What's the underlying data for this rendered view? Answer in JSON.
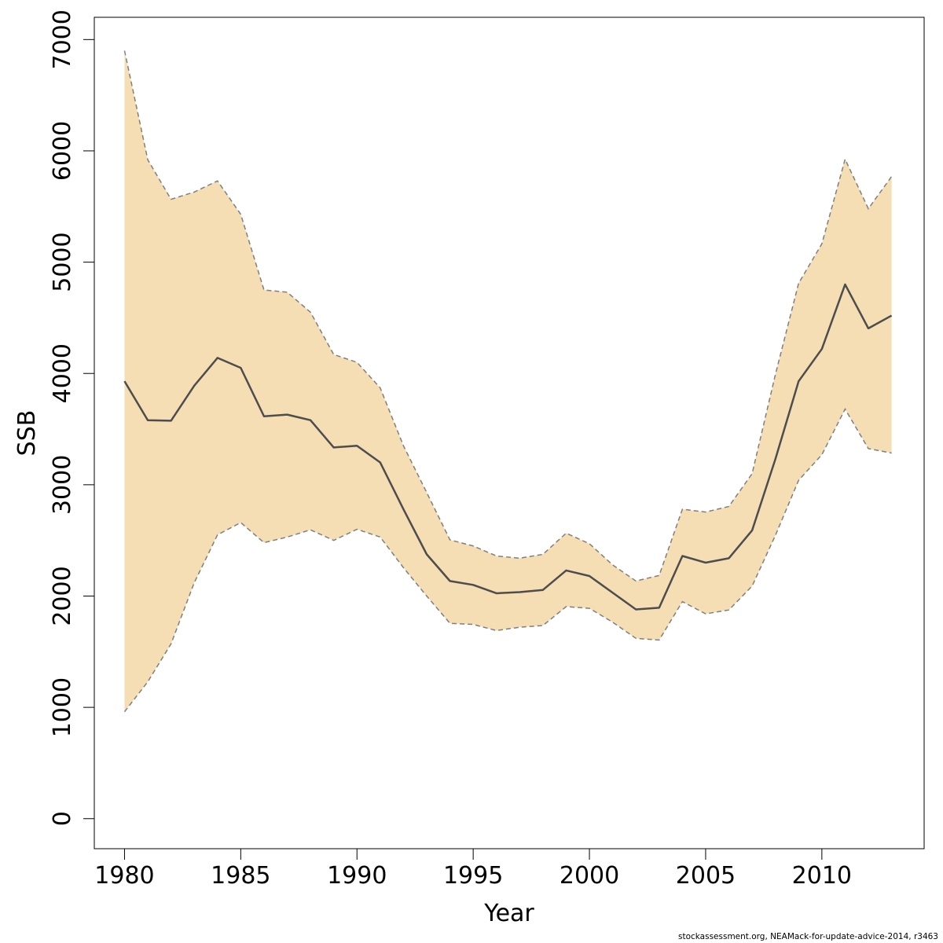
{
  "chart_data": {
    "type": "area",
    "xlabel": "Year",
    "ylabel": "SSB",
    "xlim": [
      1978.7,
      2014.4
    ],
    "ylim": [
      -270,
      7200
    ],
    "xticks": [
      1980,
      1985,
      1990,
      1995,
      2000,
      2005,
      2010
    ],
    "yticks": [
      0,
      1000,
      2000,
      3000,
      4000,
      5000,
      6000,
      7000
    ],
    "grid": false,
    "legend": "none",
    "x": [
      1980,
      1981,
      1982,
      1983,
      1984,
      1985,
      1986,
      1987,
      1988,
      1989,
      1990,
      1991,
      1992,
      1993,
      1994,
      1995,
      1996,
      1997,
      1998,
      1999,
      2000,
      2001,
      2002,
      2003,
      2004,
      2005,
      2006,
      2007,
      2008,
      2009,
      2010,
      2011,
      2012,
      2013
    ],
    "series": [
      {
        "role": "estimate",
        "values": [
          3930,
          3580,
          3575,
          3890,
          4140,
          4050,
          3615,
          3630,
          3580,
          3335,
          3350,
          3200,
          2780,
          2375,
          2135,
          2100,
          2025,
          2035,
          2055,
          2230,
          2180,
          2030,
          1880,
          1895,
          2360,
          2300,
          2340,
          2590,
          3230,
          3930,
          4220,
          4800,
          4405,
          4520
        ]
      },
      {
        "role": "upper",
        "values": [
          6900,
          5920,
          5565,
          5630,
          5730,
          5430,
          4750,
          4730,
          4550,
          4170,
          4100,
          3870,
          3350,
          2930,
          2505,
          2450,
          2360,
          2340,
          2375,
          2565,
          2470,
          2280,
          2135,
          2185,
          2780,
          2755,
          2805,
          3100,
          3990,
          4810,
          5165,
          5925,
          5480,
          5770
        ]
      },
      {
        "role": "lower",
        "values": [
          960,
          1230,
          1570,
          2120,
          2550,
          2660,
          2480,
          2530,
          2595,
          2500,
          2600,
          2530,
          2255,
          2000,
          1755,
          1745,
          1690,
          1720,
          1735,
          1905,
          1890,
          1765,
          1620,
          1605,
          1950,
          1840,
          1875,
          2090,
          2545,
          3040,
          3270,
          3680,
          3325,
          3285
        ]
      }
    ],
    "colors": {
      "band_fill": "#f5deb3",
      "band_border": "#7f7f7f",
      "line": "#4d4d4d",
      "axis": "#000000"
    }
  },
  "footer": {
    "text": "stockassessment.org, NEAMack-for-update-advice-2014, r3463"
  }
}
